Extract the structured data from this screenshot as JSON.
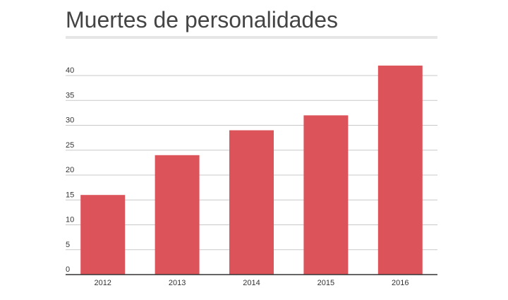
{
  "header": {
    "title": "Muertes de personalidades"
  },
  "chart_data": {
    "type": "bar",
    "title": "Muertes de personalidades",
    "categories": [
      "2012",
      "2013",
      "2014",
      "2015",
      "2016"
    ],
    "values": [
      16,
      24,
      29,
      32,
      42
    ],
    "xlabel": "",
    "ylabel": "",
    "ylim": [
      0,
      40
    ],
    "yticks": [
      0,
      5,
      10,
      15,
      20,
      25,
      30,
      35,
      40
    ],
    "grid": true,
    "legend": "none",
    "bar_color": "#dc5459",
    "grid_color": "#c8c8c8",
    "axis_color": "#333333"
  }
}
